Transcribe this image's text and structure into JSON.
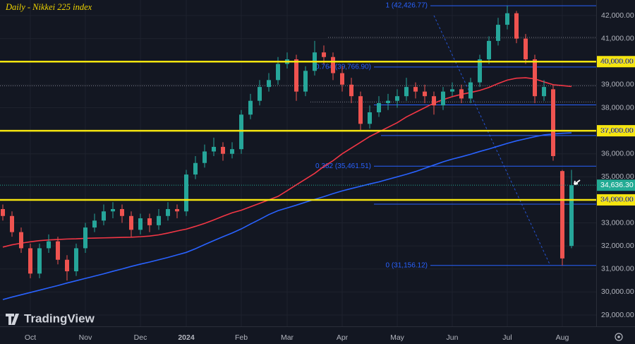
{
  "chart_data": {
    "type": "candlestick",
    "title": "Daily - Nikkei 225 index",
    "categories": [
      null,
      null,
      null,
      "Oct",
      null,
      null,
      null,
      null,
      null,
      "Nov",
      null,
      null,
      null,
      null,
      null,
      "Dec",
      null,
      null,
      null,
      null,
      "2024",
      null,
      null,
      null,
      null,
      null,
      "Feb",
      null,
      null,
      null,
      null,
      "Mar",
      null,
      null,
      null,
      null,
      null,
      "Apr",
      null,
      null,
      null,
      null,
      null,
      "May",
      null,
      null,
      null,
      null,
      null,
      "Jun",
      null,
      null,
      null,
      null,
      null,
      "Jul",
      null,
      null,
      null,
      null,
      null,
      "Aug",
      null
    ],
    "open": [
      33600,
      33300,
      32600,
      31900,
      30800,
      31900,
      32200,
      31400,
      30900,
      31900,
      32800,
      33100,
      33500,
      33600,
      33300,
      32700,
      33200,
      32900,
      33300,
      33600,
      33500,
      35100,
      35600,
      36100,
      36300,
      36000,
      36200,
      37700,
      38300,
      38900,
      39200,
      39900,
      40100,
      38700,
      39600,
      40400,
      40200,
      39500,
      39000,
      38500,
      37300,
      37800,
      38200,
      38300,
      38500,
      38900,
      38700,
      38500,
      38100,
      38700,
      38800,
      38400,
      39100,
      40100,
      40900,
      41600,
      42100,
      41000,
      40100,
      38500,
      38800,
      35250,
      32000
    ],
    "high": [
      33800,
      33500,
      32800,
      32100,
      32100,
      32500,
      32400,
      31600,
      32100,
      33000,
      33400,
      33800,
      33900,
      33800,
      33500,
      33400,
      33400,
      33600,
      33900,
      33800,
      35300,
      35900,
      36400,
      36700,
      36500,
      36500,
      37900,
      38600,
      39200,
      39500,
      40200,
      40400,
      40300,
      39800,
      40900,
      40700,
      40400,
      39800,
      39300,
      38700,
      38100,
      38500,
      38600,
      38800,
      39300,
      39100,
      39000,
      38700,
      38900,
      39100,
      39000,
      39300,
      40300,
      41100,
      41900,
      42427,
      42200,
      41200,
      40300,
      39200,
      39000,
      35300,
      35300
    ],
    "low": [
      33100,
      32400,
      31700,
      30600,
      30600,
      31700,
      31200,
      30500,
      30700,
      31700,
      32600,
      32900,
      33200,
      33000,
      32400,
      32500,
      32600,
      32700,
      33100,
      33200,
      33300,
      34900,
      35400,
      35900,
      35700,
      35800,
      36000,
      37500,
      38100,
      38700,
      39000,
      39700,
      38300,
      38500,
      39400,
      39900,
      39200,
      38700,
      38200,
      37000,
      37100,
      37600,
      37900,
      38000,
      38300,
      38400,
      38200,
      37700,
      37900,
      38500,
      38200,
      38200,
      38900,
      39900,
      40700,
      41400,
      40800,
      39900,
      38200,
      38300,
      35700,
      31156,
      31900
    ],
    "close": [
      33300,
      32600,
      31900,
      30800,
      31900,
      32200,
      31400,
      30900,
      31900,
      32800,
      33100,
      33500,
      33600,
      33300,
      32700,
      33200,
      32900,
      33300,
      33600,
      33500,
      35100,
      35600,
      36100,
      36300,
      36000,
      36200,
      37700,
      38300,
      38900,
      39200,
      39900,
      40100,
      38700,
      39600,
      40400,
      40200,
      39500,
      39000,
      38500,
      37300,
      37800,
      38200,
      38300,
      38500,
      38900,
      38700,
      38500,
      38100,
      38700,
      38800,
      38400,
      39100,
      40100,
      40900,
      41600,
      42100,
      41000,
      40100,
      38500,
      38900,
      35900,
      31458,
      34636.3
    ],
    "up_color": "#26a69a",
    "down_color": "#ef5350",
    "series": [
      {
        "type": "line",
        "color": "#f23645",
        "values": [
          31950,
          32050,
          32120,
          32180,
          32230,
          32260,
          32280,
          32300,
          32310,
          32330,
          32340,
          32350,
          32360,
          32370,
          32380,
          32400,
          32430,
          32480,
          32560,
          32650,
          32730,
          32850,
          32980,
          33130,
          33290,
          33440,
          33550,
          33700,
          33850,
          34000,
          34150,
          34400,
          34650,
          34900,
          35150,
          35450,
          35700,
          36000,
          36250,
          36500,
          36750,
          36950,
          37150,
          37350,
          37600,
          37800,
          38000,
          38200,
          38350,
          38480,
          38580,
          38660,
          38750,
          38880,
          39050,
          39200,
          39280,
          39300,
          39250,
          39120,
          39000,
          38960,
          38920
        ]
      },
      {
        "type": "line",
        "color": "#2962ff",
        "values": [
          29670,
          29780,
          29880,
          29980,
          30080,
          30180,
          30280,
          30390,
          30490,
          30590,
          30690,
          30790,
          30900,
          31000,
          31110,
          31210,
          31300,
          31400,
          31500,
          31610,
          31720,
          31880,
          32060,
          32230,
          32400,
          32560,
          32740,
          32950,
          33150,
          33360,
          33530,
          33650,
          33770,
          33900,
          34020,
          34140,
          34270,
          34390,
          34490,
          34590,
          34690,
          34780,
          34890,
          35000,
          35110,
          35230,
          35370,
          35510,
          35650,
          35770,
          35870,
          35980,
          36100,
          36210,
          36330,
          36450,
          36560,
          36650,
          36740,
          36820,
          36860,
          36890,
          36910
        ]
      }
    ],
    "ylim": [
      28510,
      42675
    ],
    "yticks": [
      {
        "value": 29000,
        "label": "29,000.00"
      },
      {
        "value": 30000,
        "label": "30,000.00"
      },
      {
        "value": 31000,
        "label": "31,000.00"
      },
      {
        "value": 32000,
        "label": "32,000.00"
      },
      {
        "value": 33000,
        "label": "33,000.00"
      },
      {
        "value": 34000,
        "label": "34,000.00"
      },
      {
        "value": 35000,
        "label": "35,000.00"
      },
      {
        "value": 36000,
        "label": "36,000.00"
      },
      {
        "value": 37000,
        "label": "37,000.00"
      },
      {
        "value": 38000,
        "label": "38,000.00"
      },
      {
        "value": 39000,
        "label": "39,000.00"
      },
      {
        "value": 40000,
        "label": "40,000.00"
      },
      {
        "value": 41000,
        "label": "41,000.00"
      },
      {
        "value": 42000,
        "label": "42,000.00"
      }
    ],
    "grid": true,
    "levels": [
      {
        "value": 40000,
        "label": "40,000.00"
      },
      {
        "value": 37000,
        "label": "37,000.00"
      },
      {
        "value": 34000,
        "label": "34,000.00"
      }
    ],
    "level_color": "#f5e50f",
    "price_label": {
      "value": 34636.3,
      "label": "34,636.30"
    },
    "price_color": "#22ab94",
    "fib_color": "#2962ff",
    "fib_levels": [
      {
        "value": 42426.77,
        "label": "1 (42,426.77)"
      },
      {
        "value": 39766.9,
        "label": "0.764 (39,766.90)"
      },
      {
        "value": 38121.4
      },
      {
        "value": 36791.45
      },
      {
        "value": 35461.51,
        "label": "0.382 (35,461.51)"
      },
      {
        "value": 33816
      },
      {
        "value": 31156.12,
        "label": "0 (31,156.12)"
      }
    ],
    "reference_lines": [
      41050,
      38950,
      38250
    ],
    "watermark": "TradingView"
  }
}
